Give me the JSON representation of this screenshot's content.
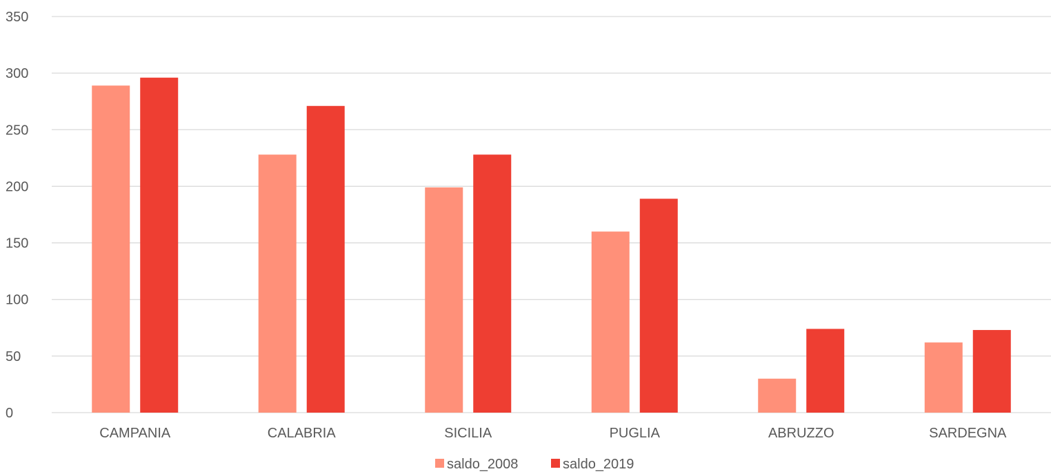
{
  "chart_data": {
    "type": "bar",
    "categories": [
      "CAMPANIA",
      "CALABRIA",
      "SICILIA",
      "PUGLIA",
      "ABRUZZO",
      "SARDEGNA"
    ],
    "series": [
      {
        "name": "saldo_2008",
        "color": "#FF9079",
        "values": [
          289,
          228,
          199,
          160,
          30,
          62
        ]
      },
      {
        "name": "saldo_2019",
        "color": "#EE3E32",
        "values": [
          296,
          271,
          228,
          189,
          74,
          73
        ]
      }
    ],
    "ylim": [
      0,
      350
    ],
    "yticks": [
      0,
      50,
      100,
      150,
      200,
      250,
      300,
      350
    ],
    "grid": true,
    "legend_position": "bottom",
    "gridline_color": "#D9D9D9",
    "text_color": "#595959"
  }
}
